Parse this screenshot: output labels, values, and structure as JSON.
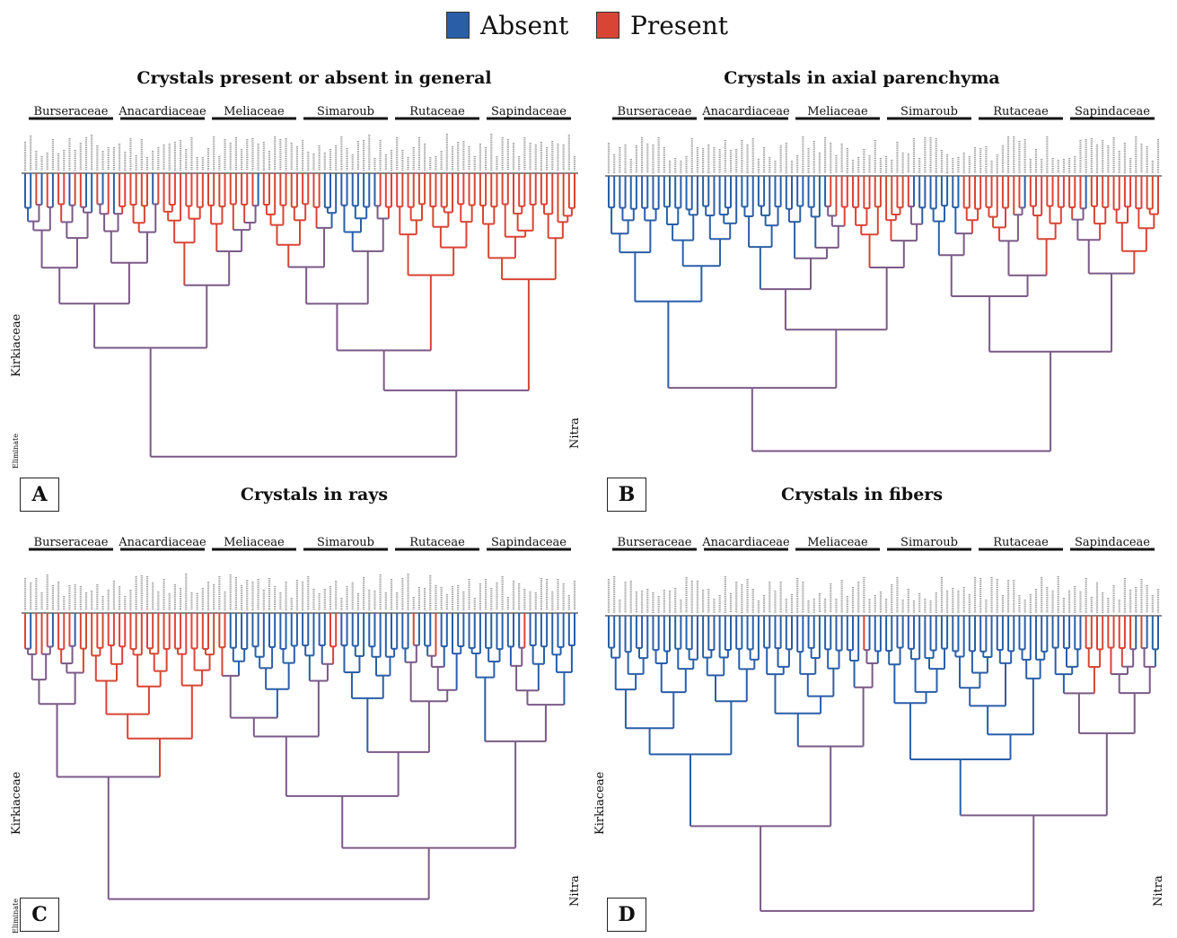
{
  "legend": {
    "absent": {
      "label": "Absent",
      "color": "#2a5fa8"
    },
    "present": {
      "label": "Present",
      "color": "#d94535"
    }
  },
  "families": [
    "Burseraceae",
    "Anacardiaceae",
    "Meliaceae",
    "Simaroub",
    "Rutaceae",
    "Sapindaceae"
  ],
  "panels": [
    {
      "letter": "A",
      "title": "Crystals present or absent in general",
      "side_labels": {
        "left": "Kirkiaceae",
        "outgroup": "Eliminate",
        "right": "Nitra"
      },
      "leaf_states": [
        "A",
        "A",
        "P",
        "A",
        "P",
        "A",
        "P",
        "P",
        "A",
        "P",
        "P",
        "A",
        "A",
        "P",
        "A",
        "P",
        "A",
        "P",
        "P",
        "P",
        "P",
        "P",
        "P",
        "A",
        "P",
        "P",
        "P",
        "P",
        "P",
        "P",
        "P",
        "P",
        "P",
        "P",
        "P",
        "P",
        "P",
        "P",
        "P",
        "P",
        "P",
        "P",
        "A",
        "P",
        "P",
        "P",
        "P",
        "P",
        "P",
        "P",
        "P",
        "P",
        "P",
        "P",
        "A",
        "A",
        "A",
        "A",
        "A",
        "A",
        "A",
        "A",
        "A",
        "A",
        "P",
        "P",
        "P",
        "P",
        "P",
        "P",
        "P",
        "P",
        "P",
        "P",
        "P",
        "P",
        "P",
        "P",
        "P",
        "P",
        "P",
        "P",
        "P",
        "P",
        "P",
        "P",
        "P",
        "P",
        "P",
        "P",
        "P",
        "P",
        "P",
        "P",
        "P",
        "P",
        "P",
        "P",
        "P",
        "P"
      ]
    },
    {
      "letter": "B",
      "title": "Crystals in axial parenchyma",
      "side_labels": {
        "left": "",
        "outgroup": "",
        "right": ""
      },
      "leaf_states": [
        "A",
        "A",
        "A",
        "A",
        "A",
        "A",
        "A",
        "A",
        "A",
        "A",
        "A",
        "A",
        "A",
        "A",
        "A",
        "A",
        "A",
        "A",
        "A",
        "A",
        "A",
        "A",
        "A",
        "A",
        "A",
        "A",
        "A",
        "A",
        "A",
        "A",
        "A",
        "A",
        "A",
        "A",
        "A",
        "A",
        "A",
        "A",
        "A",
        "A",
        "P",
        "P",
        "P",
        "P",
        "P",
        "P",
        "P",
        "P",
        "P",
        "P",
        "P",
        "P",
        "P",
        "P",
        "P",
        "A",
        "A",
        "A",
        "A",
        "A",
        "A",
        "A",
        "A",
        "A",
        "P",
        "P",
        "P",
        "P",
        "P",
        "P",
        "P",
        "P",
        "P",
        "P",
        "P",
        "A",
        "P",
        "P",
        "P",
        "P",
        "P",
        "P",
        "P",
        "P",
        "P",
        "P",
        "A",
        "P",
        "P",
        "P",
        "P",
        "P",
        "P",
        "P",
        "P",
        "P",
        "P",
        "P",
        "P",
        "P"
      ]
    },
    {
      "letter": "C",
      "title": "Crystals in rays",
      "side_labels": {
        "left": "Kirkiaceae",
        "outgroup": "Eliminate",
        "right": "Nitra"
      },
      "leaf_states": [
        "P",
        "A",
        "P",
        "P",
        "P",
        "A",
        "P",
        "P",
        "P",
        "A",
        "P",
        "P",
        "P",
        "P",
        "P",
        "P",
        "P",
        "P",
        "P",
        "P",
        "P",
        "P",
        "P",
        "P",
        "P",
        "P",
        "P",
        "P",
        "P",
        "P",
        "P",
        "P",
        "P",
        "P",
        "P",
        "P",
        "P",
        "A",
        "A",
        "A",
        "A",
        "A",
        "A",
        "A",
        "A",
        "A",
        "A",
        "A",
        "A",
        "A",
        "A",
        "A",
        "A",
        "A",
        "A",
        "P",
        "P",
        "A",
        "A",
        "A",
        "A",
        "A",
        "A",
        "A",
        "A",
        "A",
        "A",
        "A",
        "A",
        "A",
        "P",
        "A",
        "A",
        "A",
        "P",
        "A",
        "A",
        "A",
        "A",
        "A",
        "A",
        "A",
        "A",
        "A",
        "A",
        "A",
        "A",
        "A",
        "A",
        "A",
        "P",
        "A",
        "A",
        "A",
        "A",
        "A",
        "A",
        "A",
        "A",
        "A"
      ]
    },
    {
      "letter": "D",
      "title": "Crystals in fibers",
      "side_labels": {
        "left": "Kirkiaceae",
        "outgroup": "",
        "right": "Nitra"
      },
      "leaf_states": [
        "A",
        "A",
        "A",
        "A",
        "A",
        "A",
        "A",
        "A",
        "A",
        "A",
        "A",
        "A",
        "A",
        "A",
        "A",
        "A",
        "A",
        "A",
        "A",
        "A",
        "A",
        "A",
        "A",
        "A",
        "A",
        "A",
        "A",
        "A",
        "A",
        "A",
        "A",
        "A",
        "A",
        "A",
        "A",
        "A",
        "A",
        "A",
        "A",
        "A",
        "A",
        "A",
        "A",
        "A",
        "A",
        "A",
        "P",
        "A",
        "A",
        "A",
        "A",
        "A",
        "A",
        "A",
        "A",
        "A",
        "A",
        "A",
        "A",
        "A",
        "A",
        "A",
        "A",
        "A",
        "A",
        "A",
        "A",
        "A",
        "A",
        "A",
        "A",
        "A",
        "A",
        "A",
        "A",
        "A",
        "A",
        "A",
        "A",
        "A",
        "A",
        "A",
        "A",
        "A",
        "A",
        "A",
        "P",
        "P",
        "P",
        "P",
        "P",
        "P",
        "P",
        "P",
        "P",
        "A",
        "P",
        "A",
        "A",
        "A"
      ]
    }
  ]
}
